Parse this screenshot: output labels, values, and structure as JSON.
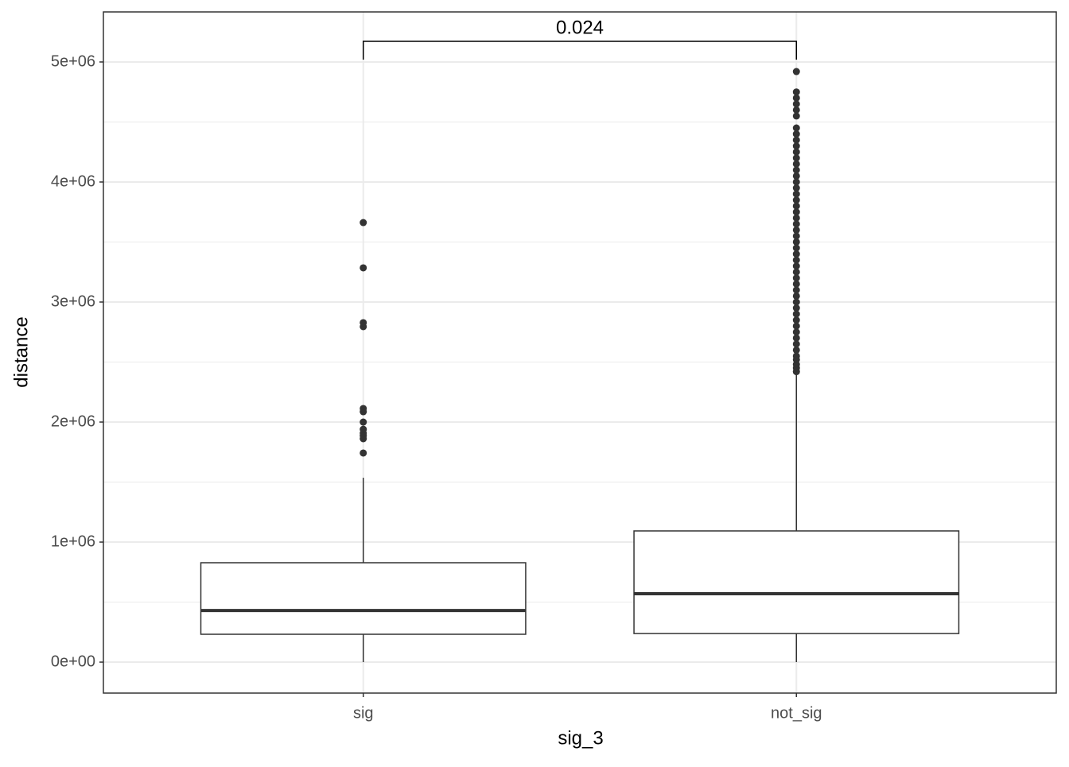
{
  "chart_data": {
    "type": "boxplot",
    "x_label": "sig_3",
    "y_label": "distance",
    "annotation": "0.024",
    "categories": [
      "sig",
      "not_sig"
    ],
    "boxes": [
      {
        "min": 0,
        "q1": 232000,
        "median": 430000,
        "q3": 828000,
        "max": 1536000,
        "outliers": [
          1742000,
          1861000,
          1887000,
          1907000,
          1940000,
          2000000,
          2086000,
          2113000,
          2795000,
          2828000,
          3285000,
          3662000
        ]
      },
      {
        "min": 0,
        "q1": 238000,
        "median": 570000,
        "q3": 1093000,
        "max": 2404000,
        "outliers": [
          2420000,
          2450000,
          2480000,
          2520000,
          2550000,
          2600000,
          2650000,
          2700000,
          2750000,
          2800000,
          2850000,
          2900000,
          2950000,
          3000000,
          3050000,
          3100000,
          3150000,
          3200000,
          3250000,
          3300000,
          3350000,
          3400000,
          3450000,
          3500000,
          3550000,
          3600000,
          3650000,
          3700000,
          3750000,
          3800000,
          3850000,
          3900000,
          3950000,
          4000000,
          4050000,
          4100000,
          4150000,
          4200000,
          4250000,
          4300000,
          4350000,
          4400000,
          4450000,
          4550000,
          4600000,
          4650000,
          4700000,
          4750000,
          4920000
        ]
      }
    ],
    "box_color": "#333333",
    "box_fill": "#ffffff",
    "ylim": [
      -258000,
      5417000
    ],
    "yticks": [
      {
        "value": 0,
        "label": "0e+00"
      },
      {
        "value": 1000000,
        "label": "1e+06"
      },
      {
        "value": 2000000,
        "label": "2e+06"
      },
      {
        "value": 3000000,
        "label": "3e+06"
      },
      {
        "value": 4000000,
        "label": "4e+06"
      },
      {
        "value": 5000000,
        "label": "5e+06"
      }
    ],
    "y_minor_ticks": [
      500000,
      1500000,
      2500000,
      3500000,
      4500000
    ],
    "grid": true
  }
}
